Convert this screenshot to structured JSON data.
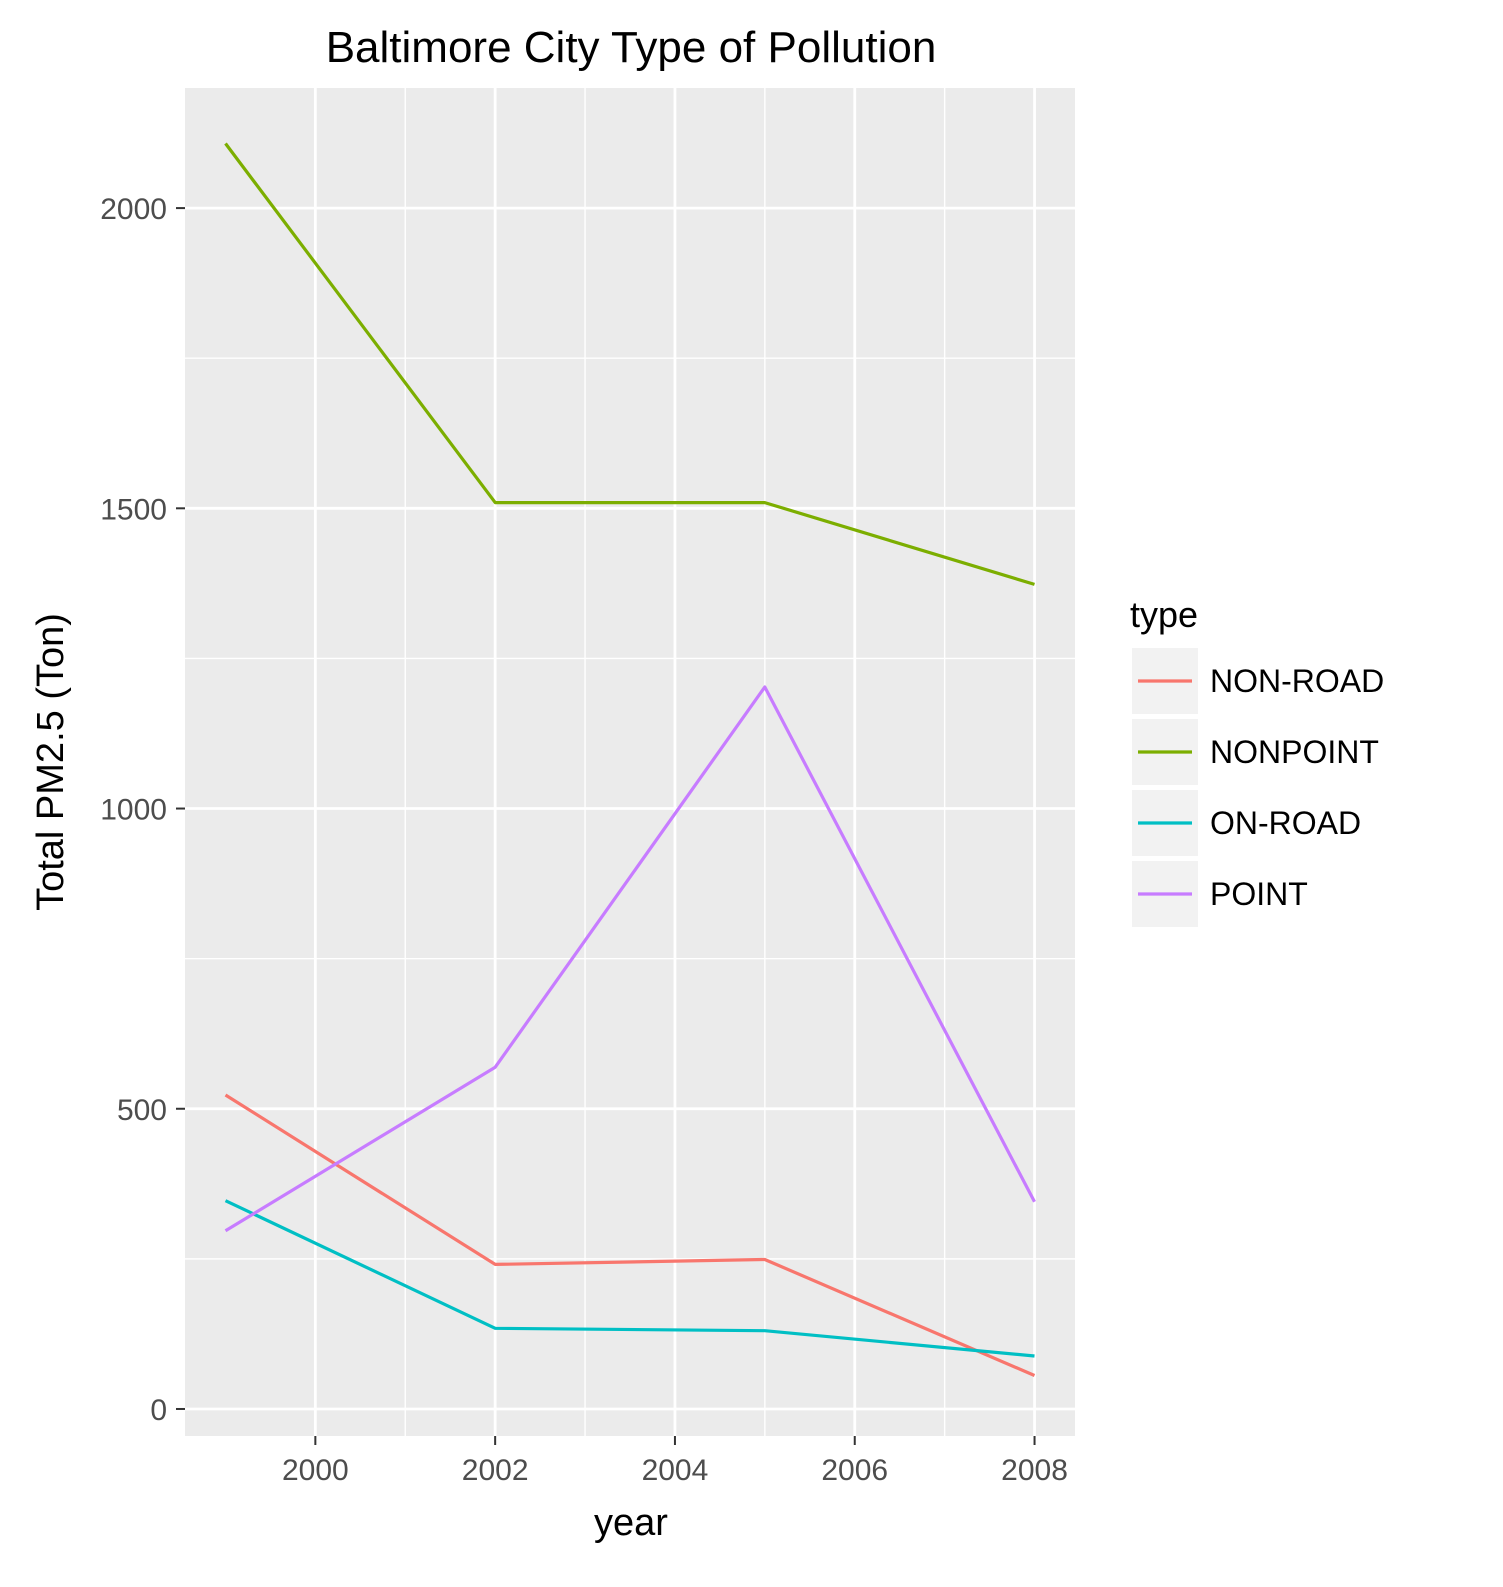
{
  "chart_data": {
    "type": "line",
    "title": "Baltimore City Type of Pollution",
    "xlabel": "year",
    "ylabel": "Total PM2.5 (Ton)",
    "x": [
      1999,
      2002,
      2005,
      2008
    ],
    "xlim": [
      1998.55,
      2008.45
    ],
    "ylim": [
      -45,
      2200
    ],
    "xticks": [
      2000,
      2002,
      2004,
      2006,
      2008
    ],
    "xtick_labels": [
      "2000",
      "2002",
      "2004",
      "2006",
      "2008"
    ],
    "xminor": [
      2001,
      2003,
      2005,
      2007
    ],
    "yticks": [
      0,
      500,
      1000,
      1500,
      2000
    ],
    "ytick_labels": [
      "0",
      "500",
      "1000",
      "1500",
      "2000"
    ],
    "yminor": [
      250,
      750,
      1250,
      1750
    ],
    "grid": true,
    "legend_title": "type",
    "legend_position": "right",
    "series": [
      {
        "name": "NON-ROAD",
        "color": "#F8766D",
        "values": [
          522.94,
          240.85,
          248.93,
          55.82
        ]
      },
      {
        "name": "NONPOINT",
        "color": "#7CAE00",
        "values": [
          2107.63,
          1509.5,
          1509.5,
          1373.21
        ]
      },
      {
        "name": "ON-ROAD",
        "color": "#00BFC4",
        "values": [
          346.82,
          134.31,
          130.43,
          88.28
        ]
      },
      {
        "name": "POINT",
        "color": "#C77CFF",
        "values": [
          296.8,
          569.26,
          1202.49,
          344.98
        ]
      }
    ]
  }
}
